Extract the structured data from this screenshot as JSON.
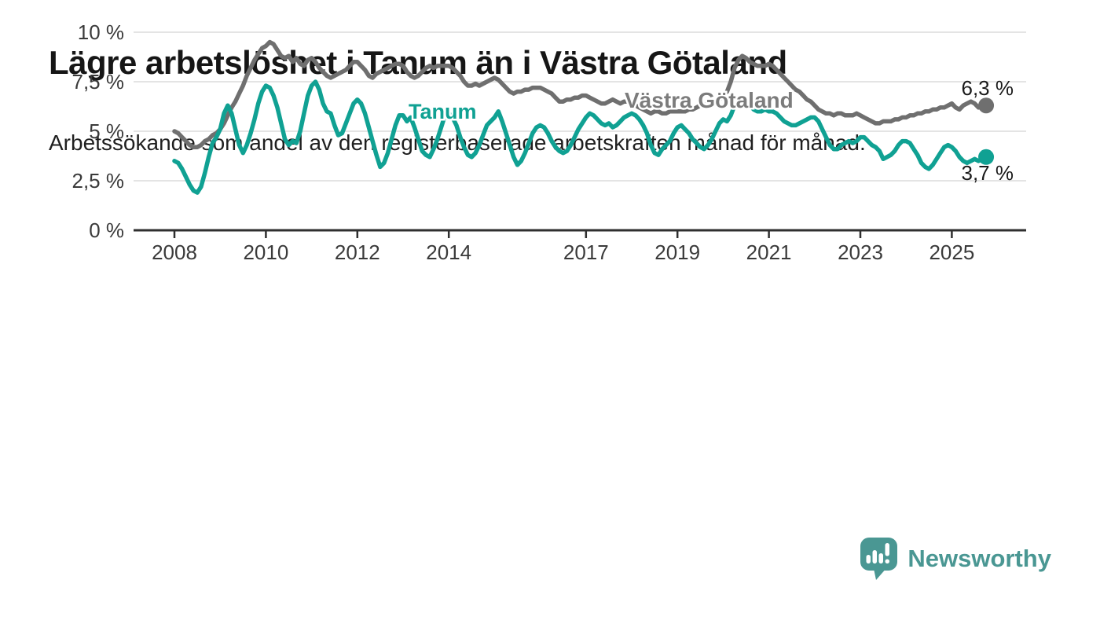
{
  "header": {
    "title": "Lägre arbetslöshet i Tanum än i Västra Götaland",
    "subtitle": "Arbetssökande som andel av den registerbaserade arbetskraften månad för månad."
  },
  "branding": {
    "logo_text": "Newsworthy",
    "logo_icon": "bar-chart-speech-bubble-icon",
    "logo_color": "#4a9793"
  },
  "colors": {
    "tanum_line": "#10a193",
    "vastra_gotaland_line": "#6f6f6f",
    "vastra_gotaland_label": "#7c7c7c",
    "axis_line": "#2f2f2f",
    "gridline": "#dcdcdc",
    "axis_text": "#3a3a3a"
  },
  "chart_data": {
    "type": "line",
    "title": "Lägre arbetslöshet i Tanum än i Västra Götaland",
    "xlabel": "",
    "ylabel": "Arbetssökande som andel av den registerbaserade arbetskraften",
    "x_start": "2008-01",
    "x_end": "2025-10",
    "points_per_year": 12,
    "grid": "horizontal",
    "ylim": [
      0,
      10.3
    ],
    "y_ticks": [
      0,
      2.5,
      5,
      7.5,
      10
    ],
    "y_tick_labels": [
      "0 %",
      "2,5 %",
      "5 %",
      "7,5 %",
      "10 %"
    ],
    "x_tick_years": [
      2008,
      2010,
      2012,
      2014,
      2017,
      2019,
      2021,
      2023,
      2025
    ],
    "x_tick_labels": [
      "2008",
      "2010",
      "2012",
      "2014",
      "2017",
      "2019",
      "2021",
      "2023",
      "2025"
    ],
    "series": [
      {
        "name": "Västra Götaland",
        "color": "#6f6f6f",
        "end_value": 6.3,
        "end_label": "6,3 %",
        "values": [
          5.0,
          4.9,
          4.7,
          4.5,
          4.3,
          4.2,
          4.2,
          4.3,
          4.5,
          4.6,
          4.8,
          4.9,
          5.1,
          5.4,
          5.8,
          6.2,
          6.5,
          6.9,
          7.3,
          7.8,
          8.2,
          8.6,
          8.9,
          9.2,
          9.3,
          9.5,
          9.4,
          9.1,
          8.8,
          8.7,
          8.8,
          8.5,
          8.7,
          8.4,
          8.3,
          8.6,
          8.7,
          8.5,
          8.2,
          8.0,
          7.8,
          7.7,
          7.8,
          7.9,
          8.0,
          8.1,
          8.3,
          8.5,
          8.5,
          8.3,
          8.1,
          7.8,
          7.7,
          7.9,
          8.0,
          8.1,
          8.2,
          8.3,
          8.4,
          8.4,
          8.3,
          8.0,
          7.8,
          7.7,
          7.8,
          8.0,
          8.2,
          8.3,
          8.2,
          8.3,
          8.3,
          8.3,
          8.3,
          8.2,
          8.0,
          7.8,
          7.5,
          7.3,
          7.3,
          7.4,
          7.3,
          7.4,
          7.5,
          7.6,
          7.7,
          7.6,
          7.4,
          7.2,
          7.0,
          6.9,
          7.0,
          7.0,
          7.1,
          7.1,
          7.2,
          7.2,
          7.2,
          7.1,
          7.0,
          6.9,
          6.7,
          6.5,
          6.5,
          6.6,
          6.6,
          6.7,
          6.7,
          6.8,
          6.8,
          6.7,
          6.6,
          6.5,
          6.4,
          6.4,
          6.5,
          6.6,
          6.5,
          6.4,
          6.5,
          6.5,
          6.4,
          6.3,
          6.2,
          6.1,
          6.0,
          5.9,
          6.0,
          6.0,
          5.9,
          5.9,
          6.0,
          6.0,
          6.0,
          6.0,
          6.0,
          6.1,
          6.1,
          6.2,
          6.3,
          6.3,
          6.4,
          6.4,
          6.5,
          6.6,
          6.8,
          7.0,
          7.5,
          8.2,
          8.6,
          8.8,
          8.7,
          8.5,
          8.4,
          8.3,
          8.3,
          8.3,
          8.4,
          8.3,
          8.1,
          7.9,
          7.7,
          7.5,
          7.3,
          7.1,
          7.0,
          6.8,
          6.6,
          6.5,
          6.3,
          6.1,
          6.0,
          5.9,
          5.9,
          5.8,
          5.9,
          5.9,
          5.8,
          5.8,
          5.8,
          5.9,
          5.8,
          5.7,
          5.6,
          5.5,
          5.4,
          5.4,
          5.5,
          5.5,
          5.5,
          5.6,
          5.6,
          5.7,
          5.7,
          5.8,
          5.8,
          5.9,
          5.9,
          6.0,
          6.0,
          6.1,
          6.1,
          6.2,
          6.2,
          6.3,
          6.4,
          6.2,
          6.1,
          6.3,
          6.4,
          6.5,
          6.4,
          6.2,
          6.3,
          6.3
        ]
      },
      {
        "name": "Tanum",
        "color": "#10a193",
        "end_value": 3.7,
        "end_label": "3,7 %",
        "values": [
          3.5,
          3.4,
          3.1,
          2.7,
          2.3,
          2.0,
          1.9,
          2.2,
          2.9,
          3.7,
          4.4,
          4.7,
          5.1,
          5.9,
          6.3,
          5.9,
          5.1,
          4.3,
          3.9,
          4.3,
          4.9,
          5.6,
          6.4,
          7.0,
          7.3,
          7.2,
          6.8,
          6.2,
          5.4,
          4.6,
          4.3,
          4.5,
          4.4,
          5.0,
          5.9,
          6.8,
          7.3,
          7.5,
          7.1,
          6.4,
          6.0,
          5.9,
          5.3,
          4.8,
          4.9,
          5.4,
          5.9,
          6.4,
          6.6,
          6.4,
          5.9,
          5.2,
          4.5,
          3.8,
          3.2,
          3.4,
          3.9,
          4.6,
          5.3,
          5.8,
          5.8,
          5.5,
          5.7,
          5.2,
          4.6,
          4.0,
          3.8,
          3.7,
          4.1,
          4.6,
          5.2,
          5.8,
          5.9,
          5.7,
          5.3,
          4.7,
          4.2,
          3.8,
          3.7,
          3.9,
          4.3,
          4.8,
          5.3,
          5.5,
          5.7,
          6.0,
          5.5,
          4.9,
          4.3,
          3.7,
          3.3,
          3.5,
          3.9,
          4.4,
          4.9,
          5.2,
          5.3,
          5.2,
          4.9,
          4.5,
          4.2,
          4.0,
          3.9,
          4.0,
          4.3,
          4.7,
          5.1,
          5.4,
          5.7,
          5.9,
          5.8,
          5.6,
          5.4,
          5.3,
          5.4,
          5.2,
          5.3,
          5.5,
          5.7,
          5.8,
          5.9,
          5.8,
          5.6,
          5.3,
          4.9,
          4.3,
          3.9,
          3.8,
          4.1,
          4.3,
          4.5,
          4.9,
          5.2,
          5.3,
          5.1,
          4.9,
          4.6,
          4.4,
          4.2,
          4.1,
          4.3,
          4.6,
          5.0,
          5.4,
          5.6,
          5.5,
          5.8,
          6.3,
          6.5,
          6.5,
          6.4,
          6.3,
          6.1,
          6.0,
          6.0,
          6.1,
          6.0,
          6.0,
          5.9,
          5.7,
          5.5,
          5.4,
          5.3,
          5.3,
          5.4,
          5.5,
          5.6,
          5.7,
          5.7,
          5.5,
          5.1,
          4.7,
          4.3,
          4.1,
          4.1,
          4.3,
          4.4,
          4.5,
          4.4,
          4.5,
          4.7,
          4.7,
          4.5,
          4.3,
          4.2,
          4.0,
          3.6,
          3.7,
          3.8,
          4.0,
          4.3,
          4.5,
          4.5,
          4.4,
          4.1,
          3.8,
          3.4,
          3.2,
          3.1,
          3.3,
          3.6,
          3.9,
          4.2,
          4.3,
          4.2,
          4.0,
          3.7,
          3.5,
          3.4,
          3.5,
          3.6,
          3.5,
          3.6,
          3.7
        ]
      }
    ],
    "annotations": [
      {
        "text": "Tanum",
        "series": "Tanum"
      },
      {
        "text": "Västra Götaland",
        "series": "Västra Götaland"
      },
      {
        "text": "6,3 %",
        "series": "Västra Götaland"
      },
      {
        "text": "3,7 %",
        "series": "Tanum"
      }
    ],
    "legend_position": "inline-labels"
  }
}
